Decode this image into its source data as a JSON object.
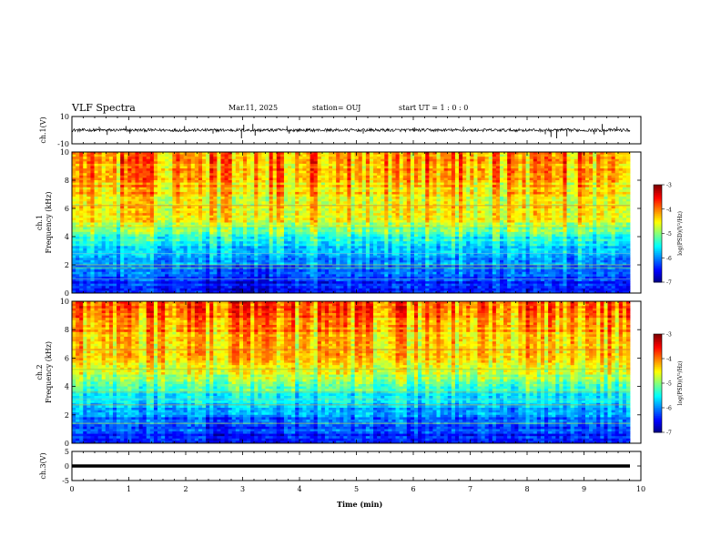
{
  "header": {
    "title": "VLF Spectra",
    "date": "Mar.11, 2025",
    "station": "station= OUJ",
    "start": "start  UT =   1 : 0  : 0"
  },
  "chart_data": [
    {
      "type": "line",
      "panel": "ch1-waveform",
      "ylabel": "ch.1(V)",
      "ylim": [
        -10,
        10
      ],
      "yticks": [
        "10",
        "-10"
      ],
      "xlim": [
        0,
        10
      ],
      "xlabel": "",
      "baseline": 0,
      "spikes": [
        {
          "x": 0.48,
          "y": 2.5
        },
        {
          "x": 0.62,
          "y": -3.5
        },
        {
          "x": 0.95,
          "y": 3
        },
        {
          "x": 1.02,
          "y": -2.5
        },
        {
          "x": 1.98,
          "y": 3
        },
        {
          "x": 2.48,
          "y": -2.5
        },
        {
          "x": 2.98,
          "y": -6
        },
        {
          "x": 3.02,
          "y": 4
        },
        {
          "x": 3.18,
          "y": 4.5
        },
        {
          "x": 3.22,
          "y": -4
        },
        {
          "x": 3.78,
          "y": 3
        },
        {
          "x": 3.82,
          "y": -2.5
        },
        {
          "x": 5.12,
          "y": -2.5
        },
        {
          "x": 6.02,
          "y": 2
        },
        {
          "x": 6.88,
          "y": 2.5
        },
        {
          "x": 8.32,
          "y": -3
        },
        {
          "x": 8.42,
          "y": -5
        },
        {
          "x": 8.52,
          "y": -6
        },
        {
          "x": 8.7,
          "y": -4.5
        },
        {
          "x": 9.18,
          "y": -3
        },
        {
          "x": 9.32,
          "y": 4.5
        },
        {
          "x": 9.35,
          "y": -3.5
        },
        {
          "x": 9.58,
          "y": 2.5
        }
      ]
    },
    {
      "type": "heatmap",
      "panel": "ch1-spectrogram",
      "ylabel_line1": "ch.1",
      "ylabel_line2": "Frequency (kHz)",
      "ylim": [
        0,
        10
      ],
      "yticks": [
        "0",
        "2",
        "4",
        "6",
        "8",
        "10"
      ],
      "xlim": [
        0,
        10
      ],
      "colorbar": {
        "label": "log(PSD)(V²/Hz)",
        "range": [
          -7,
          -3
        ],
        "ticks": [
          "-3",
          "-4",
          "-5",
          "-6",
          "-7"
        ]
      }
    },
    {
      "type": "heatmap",
      "panel": "ch2-spectrogram",
      "ylabel_line1": "ch.2",
      "ylabel_line2": "Frequency (kHz)",
      "ylim": [
        0,
        10
      ],
      "yticks": [
        "0",
        "2",
        "4",
        "6",
        "8",
        "10"
      ],
      "xlim": [
        0,
        10
      ],
      "colorbar": {
        "label": "log(PSD)(V²/Hz)",
        "range": [
          -7,
          -3
        ],
        "ticks": [
          "-3",
          "-4",
          "-5",
          "-6",
          "-7"
        ]
      }
    },
    {
      "type": "line",
      "panel": "ch3-waveform",
      "ylabel": "ch.3(V)",
      "ylim": [
        -5,
        5
      ],
      "yticks": [
        "5",
        "0",
        "-5"
      ],
      "xlim": [
        0,
        10
      ],
      "baseline": 0,
      "xlabel": "Time (min)",
      "xticks": [
        "0",
        "1",
        "2",
        "3",
        "4",
        "5",
        "6",
        "7",
        "8",
        "9",
        "10"
      ]
    }
  ]
}
